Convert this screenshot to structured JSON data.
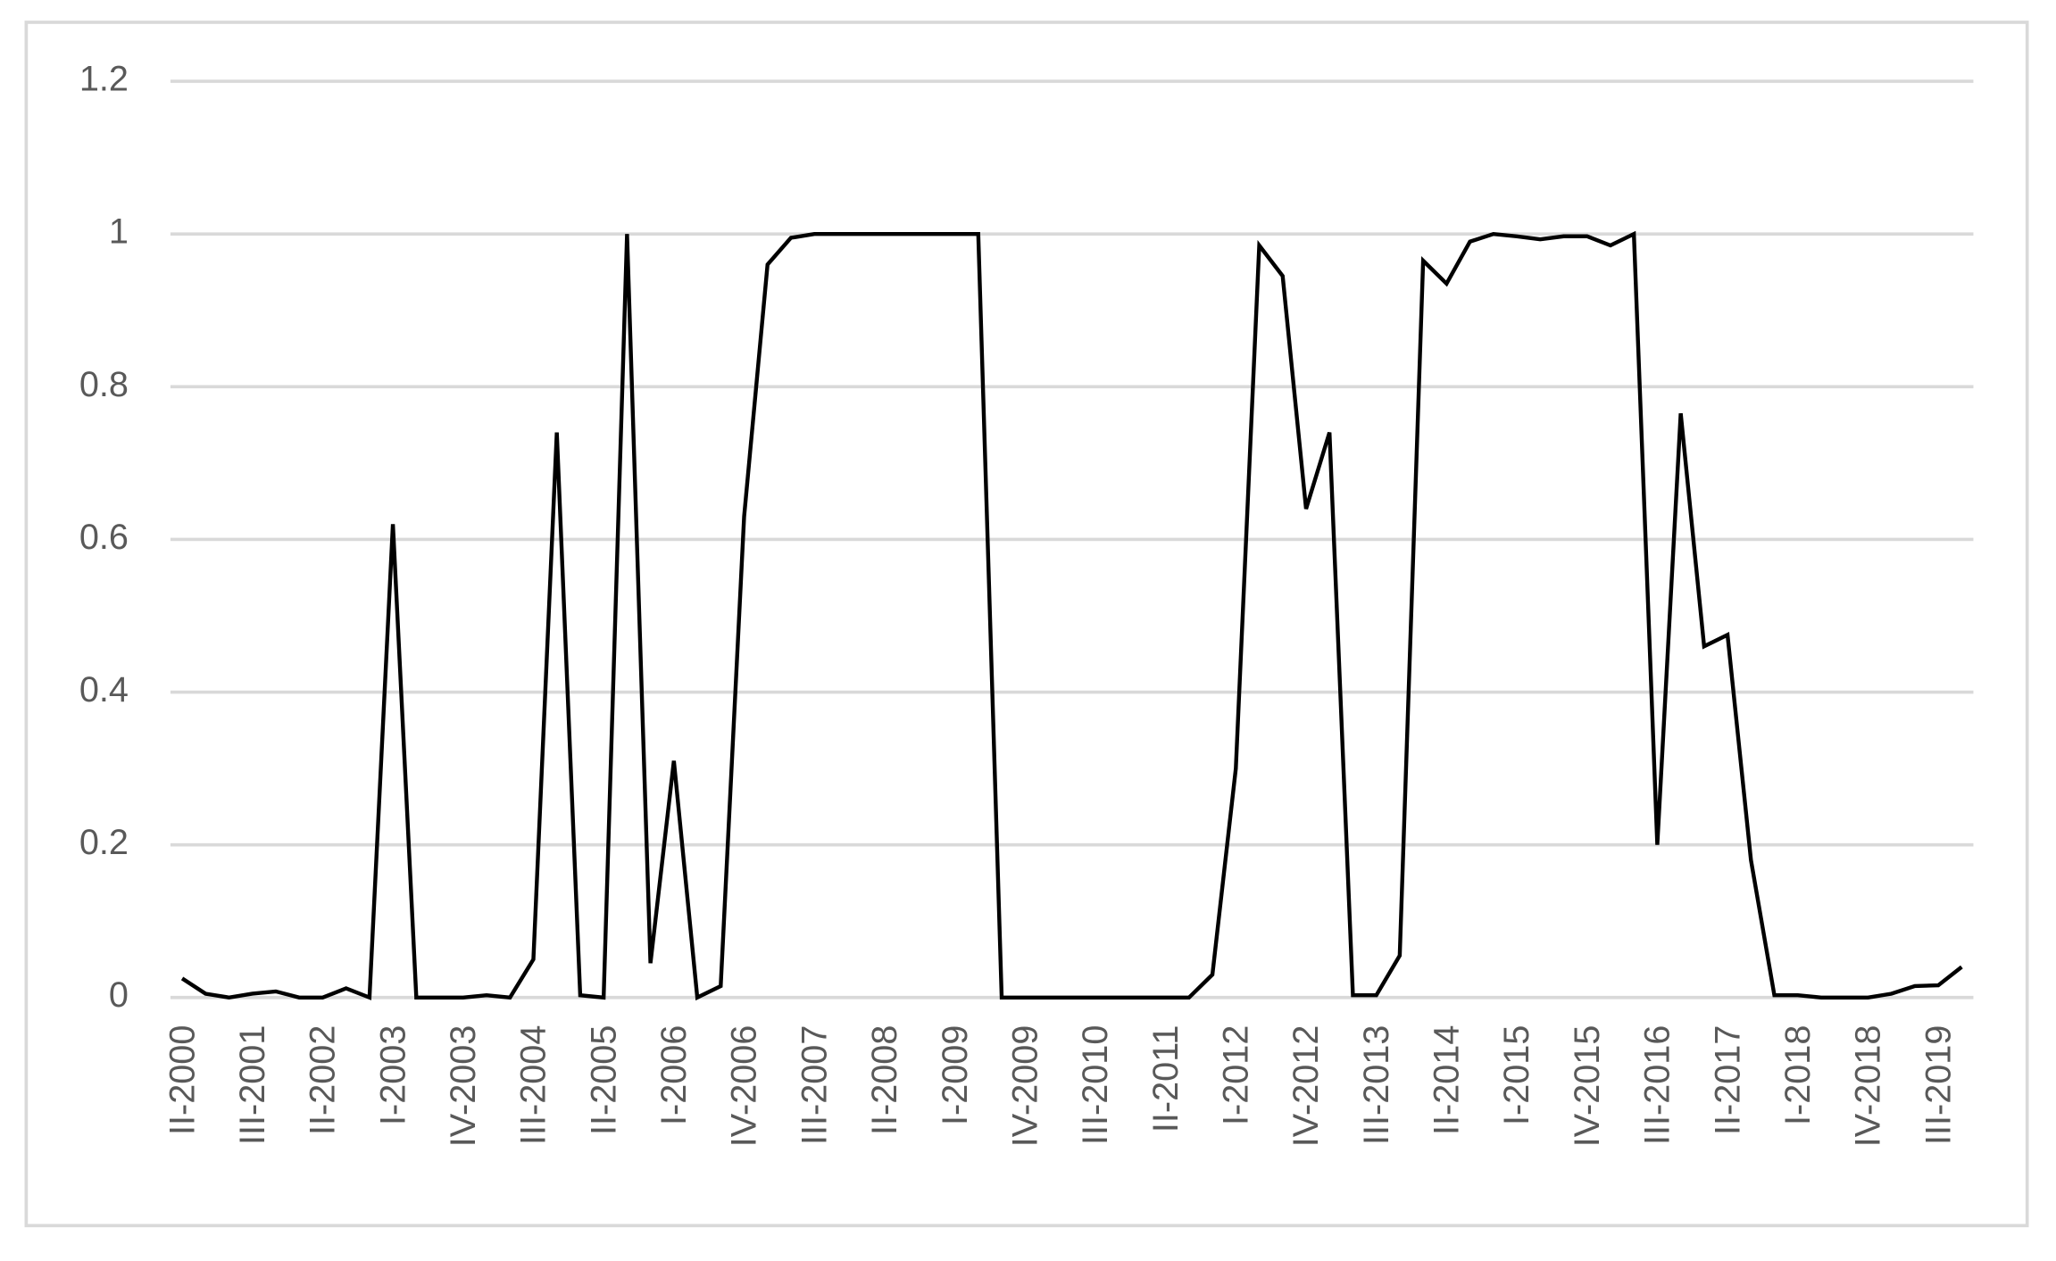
{
  "chart_data": {
    "type": "line",
    "categories": [
      "II-2000",
      null,
      null,
      "III-2001",
      null,
      null,
      "II-2002",
      null,
      null,
      "I-2003",
      null,
      null,
      "IV-2003",
      null,
      null,
      "III-2004",
      null,
      null,
      "II-2005",
      null,
      null,
      "I-2006",
      null,
      null,
      "IV-2006",
      null,
      null,
      "III-2007",
      null,
      null,
      "II-2008",
      null,
      null,
      "I-2009",
      null,
      null,
      "IV-2009",
      null,
      null,
      "III-2010",
      null,
      null,
      "II-2011",
      null,
      null,
      "I-2012",
      null,
      null,
      "IV-2012",
      null,
      null,
      "III-2013",
      null,
      null,
      "II-2014",
      null,
      null,
      "I-2015",
      null,
      null,
      "IV-2015",
      null,
      null,
      "III-2016",
      null,
      null,
      "II-2017",
      null,
      null,
      "I-2018",
      null,
      null,
      "IV-2018",
      null,
      null,
      "III-2019",
      null
    ],
    "values": [
      0.025,
      0.005,
      0,
      0.005,
      0.008,
      0,
      0,
      0.012,
      0,
      0.62,
      0,
      0,
      0,
      0.003,
      0,
      0.05,
      0.74,
      0.003,
      0,
      1.0,
      0.045,
      0.31,
      0,
      0.015,
      0.63,
      0.96,
      0.995,
      1,
      1,
      1,
      1,
      1,
      1,
      1,
      1,
      0,
      0,
      0,
      0,
      0,
      0,
      0,
      0,
      0,
      0.03,
      0.3,
      0.985,
      0.945,
      0.64,
      0.74,
      0.003,
      0.003,
      0.055,
      0.965,
      0.935,
      0.99,
      1.0,
      0.997,
      0.993,
      0.997,
      0.997,
      0.985,
      1.0,
      0.2,
      0.765,
      0.46,
      0.475,
      0.18,
      0.003,
      0.003,
      0,
      0,
      0,
      0.005,
      0.015,
      0.016,
      0.04
    ],
    "color": "#000000",
    "ylim": [
      0,
      1.2
    ],
    "yticks": [
      0,
      0.2,
      0.4,
      0.6,
      0.8,
      1,
      1.2
    ],
    "grid": true
  }
}
